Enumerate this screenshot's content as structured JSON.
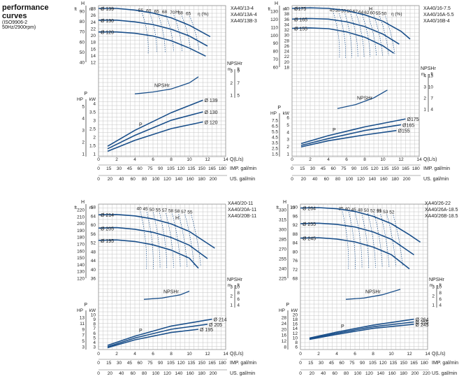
{
  "header": {
    "title_line1": "performance",
    "title_line2": "curves",
    "standard": "(ISO9906-2",
    "frequency": "50Hz/2900rpm)"
  },
  "colors": {
    "curve": "#1a4f8a",
    "grid": "#c4c4c4",
    "text": "#222222"
  },
  "chart_data": [
    {
      "type": "line",
      "id": "xa40-13",
      "models": [
        "XA40/13-4",
        "XA40/13A-4",
        "XA40/13B-3"
      ],
      "x_axis": {
        "label": "Q(L/s)",
        "range": [
          0,
          14
        ],
        "ticks": [
          0,
          2,
          4,
          6,
          8,
          10,
          12,
          14
        ]
      },
      "flow_scales": [
        {
          "label": "IMP. gal/min",
          "ticks": [
            0,
            15,
            30,
            45,
            60,
            75,
            90,
            105,
            120,
            135,
            150,
            165,
            180
          ]
        },
        {
          "label": "US. gal/min",
          "ticks": [
            0,
            20,
            40,
            60,
            80,
            100,
            120,
            140,
            160,
            180,
            200
          ]
        }
      ],
      "head": {
        "units": [
          "H",
          "ft",
          "m"
        ],
        "m_ticks": [
          28,
          26,
          24,
          22,
          20,
          18,
          16,
          14,
          12
        ],
        "ft_ticks": [
          90,
          80,
          70,
          60,
          50,
          40
        ],
        "efficiency_label": "η (%)",
        "efficiency_values": [
          "55",
          "60",
          "65",
          "68",
          "70",
          "68",
          "65"
        ],
        "series": [
          {
            "name": "Ø 139",
            "x": [
              0,
              2,
              4,
              6,
              8,
              10,
              12.3
            ],
            "y": [
              28,
              28,
              27.5,
              26.6,
              25.2,
              23,
              19.6
            ]
          },
          {
            "name": "Ø 130",
            "x": [
              0,
              2,
              4,
              6,
              8,
              10,
              12
            ],
            "y": [
              24.5,
              24.5,
              24,
              23.2,
              21.8,
              19.8,
              16.8
            ]
          },
          {
            "name": "Ø 120",
            "x": [
              0,
              2,
              4,
              6,
              8,
              10,
              11.8
            ],
            "y": [
              21,
              21,
              20.6,
              19.8,
              18.4,
              16.2,
              13.8
            ]
          }
        ]
      },
      "npsh": {
        "label": "NPSHr",
        "units": [
          "m",
          "ft"
        ],
        "m_ticks": [
          3,
          2,
          1
        ],
        "ft_ticks": [
          9,
          7,
          5
        ],
        "series": [
          {
            "name": "NPSHr",
            "x": [
              4,
              6,
              8,
              10,
              11
            ],
            "y": [
              1.1,
              1.25,
              1.5,
              2,
              2.5
            ]
          }
        ]
      },
      "power": {
        "units": [
          "P",
          "HP",
          "kW"
        ],
        "kw_ticks": [
          4,
          3.5,
          3,
          2.5,
          2,
          1.5,
          1
        ],
        "hp_ticks": [
          5,
          4,
          3,
          2,
          1
        ],
        "series": [
          {
            "name": "Ø 139",
            "x": [
              1,
              4,
              8,
              11.5
            ],
            "y": [
              1.45,
              2.4,
              3.45,
              4.2
            ]
          },
          {
            "name": "Ø 130",
            "x": [
              1,
              4,
              8,
              11.5
            ],
            "y": [
              1.3,
              2.1,
              3.0,
              3.5
            ]
          },
          {
            "name": "Ø 120",
            "x": [
              1,
              4,
              8,
              11.5
            ],
            "y": [
              1.15,
              1.8,
              2.5,
              2.9
            ]
          }
        ]
      }
    },
    {
      "type": "line",
      "id": "xa40-16",
      "models": [
        "XA40/16-7.5",
        "XA40/16A-5.5",
        "XA40/16B-4"
      ],
      "x_axis": {
        "label": "Q(L/s)",
        "range": [
          0,
          14
        ],
        "ticks": [
          0,
          2,
          4,
          6,
          8,
          10,
          12,
          14
        ]
      },
      "flow_scales": [
        {
          "label": "IMP. gal/min",
          "ticks": [
            0,
            15,
            30,
            45,
            60,
            75,
            90,
            105,
            120,
            135,
            150,
            165,
            180
          ]
        },
        {
          "label": "US. gal/min",
          "ticks": [
            0,
            20,
            40,
            60,
            80,
            100,
            120,
            140,
            160,
            180,
            200
          ]
        }
      ],
      "head": {
        "units": [
          "H",
          "ft",
          "m"
        ],
        "m_ticks": [
          40,
          38,
          36,
          34,
          32,
          30,
          28,
          26,
          24,
          22,
          20,
          18
        ],
        "ft_ticks": [
          130,
          120,
          110,
          100,
          90,
          80,
          70,
          60
        ],
        "efficiency_label": "η (%)",
        "efficiency_values": [
          "45",
          "50",
          "55",
          "60",
          "62",
          "64",
          "62",
          "60",
          "55",
          "50"
        ],
        "series": [
          {
            "name": "Ø175",
            "x": [
              0,
              2,
              4,
              6,
              8,
              10,
              12,
              13
            ],
            "y": [
              40,
              40.2,
              40,
              39.2,
              37.6,
              35.2,
              31.4,
              28.5
            ]
          },
          {
            "name": "Ø 165",
            "x": [
              0,
              2,
              4,
              6,
              8,
              10,
              11.8
            ],
            "y": [
              36,
              36.2,
              36,
              35,
              33.2,
              30.4,
              26.6
            ]
          },
          {
            "name": "Ø 155",
            "x": [
              0,
              2,
              4,
              6,
              8,
              10,
              11.2
            ],
            "y": [
              32.5,
              32.7,
              32.4,
              31.2,
              29.2,
              26,
              23.2
            ]
          }
        ]
      },
      "npsh": {
        "label": "NPSHr",
        "units": [
          "m",
          "ft"
        ],
        "m_ticks": [
          4,
          3,
          2,
          1
        ],
        "ft_ticks": [
          13,
          10,
          7,
          4
        ],
        "series": [
          {
            "name": "NPSHr",
            "x": [
              5,
              7,
              9,
              10.5
            ],
            "y": [
              1.05,
              1.4,
              2.0,
              2.7
            ]
          }
        ]
      },
      "power": {
        "units": [
          "P",
          "HP",
          "kW"
        ],
        "kw_ticks": [
          6,
          5,
          4,
          3,
          2,
          1
        ],
        "hp_ticks": [
          7.5,
          6.5,
          5.5,
          4.5,
          3.5,
          2.5,
          1.5
        ],
        "series": [
          {
            "name": "Ø175",
            "x": [
              1,
              4,
              8,
              12.5
            ],
            "y": [
              2.4,
              3.5,
              4.7,
              5.8
            ]
          },
          {
            "name": "Ø165",
            "x": [
              1,
              4,
              8,
              12
            ],
            "y": [
              2.15,
              3.1,
              4.2,
              5.0
            ]
          },
          {
            "name": "Ø155",
            "x": [
              1,
              4,
              8,
              11.5
            ],
            "y": [
              1.95,
              2.8,
              3.6,
              4.2
            ]
          }
        ]
      }
    },
    {
      "type": "line",
      "id": "xa40-20",
      "models": [
        "XA40/20-11",
        "XA40/20A-11",
        "XA40/20B-11"
      ],
      "x_axis": {
        "label": "Q(L/s)",
        "range": [
          0,
          14
        ],
        "ticks": [
          0,
          2,
          4,
          6,
          8,
          10,
          12,
          14
        ]
      },
      "flow_scales": [
        {
          "label": "IMP. gal/min",
          "ticks": [
            0,
            15,
            30,
            45,
            60,
            75,
            90,
            105,
            120,
            135,
            150,
            165,
            180
          ]
        },
        {
          "label": "US. gal/min",
          "ticks": [
            0,
            20,
            40,
            60,
            80,
            100,
            120,
            140,
            160,
            180,
            200
          ]
        }
      ],
      "head": {
        "units": [
          "H",
          "ft",
          "m"
        ],
        "m_ticks": [
          68,
          64,
          60,
          56,
          52,
          48,
          44,
          40,
          36
        ],
        "ft_ticks": [
          220,
          210,
          200,
          190,
          180,
          170,
          160,
          150,
          140,
          130,
          120
        ],
        "efficiency_label": "",
        "efficiency_values": [
          "40",
          "45",
          "50",
          "55",
          "57",
          "58",
          "58",
          "57",
          "55"
        ],
        "series": [
          {
            "name": "Ø 214",
            "x": [
              0,
              2,
              4,
              6,
              8,
              10,
              12.8
            ],
            "y": [
              64.5,
              64.6,
              64,
              62.6,
              60.4,
              57,
              49.5
            ]
          },
          {
            "name": "Ø 205",
            "x": [
              0,
              2,
              4,
              6,
              8,
              10,
              12
            ],
            "y": [
              58.5,
              58.7,
              58,
              56.6,
              54.3,
              50.8,
              44.8
            ]
          },
          {
            "name": "Ø 195",
            "x": [
              0,
              2,
              4,
              6,
              8,
              10,
              11
            ],
            "y": [
              53,
              53.2,
              52.5,
              51,
              48.6,
              45,
              40.5
            ]
          }
        ]
      },
      "npsh": {
        "label": "NPSHr",
        "units": [
          "m",
          "ft"
        ],
        "m_ticks": [
          3,
          2,
          1
        ],
        "ft_ticks": [
          10,
          8,
          6,
          4
        ],
        "series": [
          {
            "name": "NPSHr",
            "x": [
              5,
              7,
              9,
              10
            ],
            "y": [
              1.6,
              1.75,
              2.1,
              2.5
            ]
          }
        ]
      },
      "power": {
        "units": [
          "P",
          "HP",
          "kW"
        ],
        "kw_ticks": [
          10,
          9,
          8,
          7,
          6,
          5,
          4,
          3
        ],
        "hp_ticks": [
          13,
          11,
          9,
          7,
          5,
          3
        ],
        "series": [
          {
            "name": "Ø 214",
            "x": [
              1,
              4,
              8,
              12.5
            ],
            "y": [
              3.3,
              5.3,
              7.5,
              9.0
            ]
          },
          {
            "name": "Ø 205",
            "x": [
              1,
              4,
              8,
              12
            ],
            "y": [
              3.0,
              4.9,
              6.8,
              7.9
            ]
          },
          {
            "name": "Ø 195",
            "x": [
              1,
              4,
              8,
              11
            ],
            "y": [
              2.8,
              4.5,
              6.1,
              6.8
            ]
          }
        ]
      }
    },
    {
      "type": "line",
      "id": "xa40-26",
      "models": [
        "XA40/26-22",
        "XA40/26A-18.5",
        "XA40/26B-18.5"
      ],
      "x_axis": {
        "label": "Q(L/s)",
        "range": [
          0,
          14
        ],
        "ticks": [
          0,
          2,
          4,
          6,
          8,
          10,
          12,
          14
        ]
      },
      "flow_scales": [
        {
          "label": "IMP. gal/min",
          "ticks": [
            0,
            15,
            30,
            45,
            60,
            75,
            90,
            105,
            120,
            135,
            150,
            165,
            180
          ]
        },
        {
          "label": "US. gal/min",
          "ticks": [
            0,
            20,
            40,
            60,
            80,
            100,
            120,
            140,
            160,
            180,
            200,
            220
          ]
        }
      ],
      "head": {
        "units": [
          "H",
          "ft",
          "m"
        ],
        "m_ticks": [
          100,
          96,
          92,
          88,
          84,
          80,
          76,
          72,
          68
        ],
        "ft_ticks": [
          330,
          315,
          300,
          285,
          270,
          255,
          240,
          225
        ],
        "efficiency_label": "",
        "efficiency_values": [
          "35",
          "40",
          "45",
          "48",
          "50",
          "52",
          "53",
          "53",
          "52"
        ],
        "series": [
          {
            "name": "Ø 264",
            "x": [
              0,
              2,
              4,
              6,
              8,
              10,
              12,
              13.2
            ],
            "y": [
              99.5,
              99.7,
              99.2,
              98,
              95.8,
              92.5,
              87.5,
              84.2
            ]
          },
          {
            "name": "Ø 255",
            "x": [
              0,
              2,
              4,
              6,
              8,
              10,
              12.5
            ],
            "y": [
              92.5,
              92.7,
              92.2,
              91,
              88.8,
              85.5,
              78.5
            ]
          },
          {
            "name": "Ø 245",
            "x": [
              0,
              2,
              4,
              6,
              8,
              10,
              12
            ],
            "y": [
              86,
              86.2,
              85.6,
              84.3,
              82,
              78.6,
              72.2
            ]
          }
        ]
      },
      "npsh": {
        "label": "NPSHr",
        "units": [
          "m",
          "ft"
        ],
        "m_ticks": [
          3,
          2,
          1
        ],
        "ft_ticks": [
          10,
          8,
          6,
          4
        ],
        "series": [
          {
            "name": "NPSHr",
            "x": [
              5,
              7,
              9,
              11
            ],
            "y": [
              1.6,
              1.75,
              2.1,
              2.7
            ]
          }
        ]
      },
      "power": {
        "units": [
          "P",
          "HP",
          "kW"
        ],
        "kw_ticks": [
          20,
          18,
          16,
          14,
          12,
          10,
          8,
          6
        ],
        "hp_ticks": [
          28,
          24,
          20,
          16,
          12,
          8
        ],
        "series": [
          {
            "name": "Ø 264",
            "x": [
              1,
              4,
              8,
              12.5
            ],
            "y": [
              9.8,
              12.4,
              15.4,
              18.0
            ]
          },
          {
            "name": "Ø 255",
            "x": [
              1,
              4,
              8,
              12.5
            ],
            "y": [
              9.5,
              11.9,
              14.7,
              16.8
            ]
          },
          {
            "name": "Ø 245",
            "x": [
              1,
              4,
              8,
              12.5
            ],
            "y": [
              9.2,
              11.4,
              14.0,
              15.8
            ]
          }
        ]
      }
    }
  ]
}
